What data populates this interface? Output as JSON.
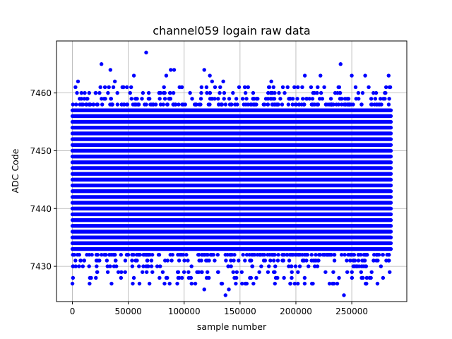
{
  "chart_data": {
    "type": "scatter",
    "title": "channel059 logain raw data",
    "xlabel": "sample number",
    "ylabel": "ADC Code",
    "xlim": [
      -14250,
      299250
    ],
    "ylim": [
      7423.9,
      7469.0
    ],
    "x_ticks": [
      0,
      50000,
      100000,
      150000,
      200000,
      250000
    ],
    "x_tick_labels": [
      "0",
      "50000",
      "100000",
      "150000",
      "200000",
      "250000"
    ],
    "y_ticks": [
      7430,
      7440,
      7450,
      7460
    ],
    "y_tick_labels": [
      "7430",
      "7440",
      "7450",
      "7460"
    ],
    "grid": true,
    "marker_color": "#0000ff",
    "x_range": [
      0,
      285000
    ],
    "dense_band": [
      7433,
      7457
    ],
    "sparse_rows": [
      7427,
      7428,
      7429,
      7430,
      7431,
      7432,
      7458,
      7459,
      7460,
      7461
    ],
    "outliers": [
      {
        "x": 500,
        "y": 7428
      },
      {
        "x": 21000,
        "y": 7428
      },
      {
        "x": 54000,
        "y": 7427
      },
      {
        "x": 87000,
        "y": 7427
      },
      {
        "x": 110000,
        "y": 7427
      },
      {
        "x": 118000,
        "y": 7426
      },
      {
        "x": 134000,
        "y": 7427
      },
      {
        "x": 137000,
        "y": 7425
      },
      {
        "x": 140000,
        "y": 7426
      },
      {
        "x": 156000,
        "y": 7427
      },
      {
        "x": 162000,
        "y": 7427
      },
      {
        "x": 182000,
        "y": 7428
      },
      {
        "x": 234000,
        "y": 7427
      },
      {
        "x": 237000,
        "y": 7427
      },
      {
        "x": 243000,
        "y": 7425
      },
      {
        "x": 266000,
        "y": 7428
      },
      {
        "x": 273000,
        "y": 7427
      },
      {
        "x": 278000,
        "y": 7428
      },
      {
        "x": 26000,
        "y": 7465
      },
      {
        "x": 66000,
        "y": 7467
      },
      {
        "x": 88000,
        "y": 7464
      },
      {
        "x": 91000,
        "y": 7464
      },
      {
        "x": 84000,
        "y": 7463
      },
      {
        "x": 118000,
        "y": 7464
      },
      {
        "x": 123000,
        "y": 7463
      },
      {
        "x": 55000,
        "y": 7463
      },
      {
        "x": 208000,
        "y": 7463
      },
      {
        "x": 240000,
        "y": 7465
      },
      {
        "x": 250000,
        "y": 7463
      },
      {
        "x": 262000,
        "y": 7463
      },
      {
        "x": 283000,
        "y": 7463
      },
      {
        "x": 34000,
        "y": 7464
      },
      {
        "x": 38000,
        "y": 7462
      },
      {
        "x": 125000,
        "y": 7462
      },
      {
        "x": 135000,
        "y": 7462
      },
      {
        "x": 178000,
        "y": 7462
      },
      {
        "x": 222000,
        "y": 7463
      },
      {
        "x": 5000,
        "y": 7462
      }
    ]
  }
}
